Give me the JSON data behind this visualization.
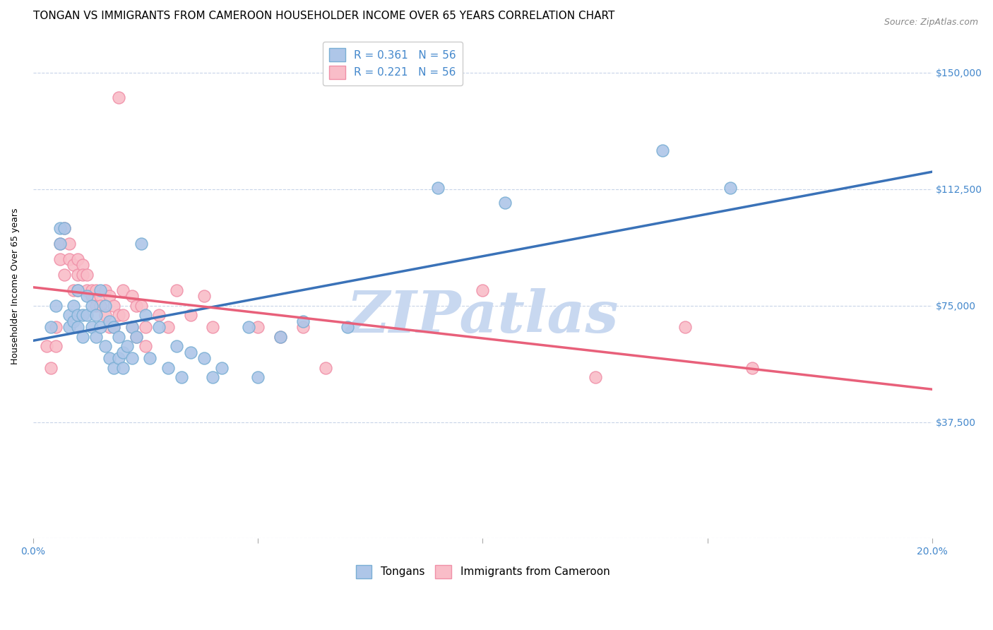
{
  "title": "TONGAN VS IMMIGRANTS FROM CAMEROON HOUSEHOLDER INCOME OVER 65 YEARS CORRELATION CHART",
  "source": "Source: ZipAtlas.com",
  "ylabel": "Householder Income Over 65 years",
  "xlim": [
    0.0,
    0.2
  ],
  "ylim": [
    0,
    162500
  ],
  "yticks": [
    0,
    37500,
    75000,
    112500,
    150000
  ],
  "ytick_labels": [
    "",
    "$37,500",
    "$75,000",
    "$112,500",
    "$150,000"
  ],
  "xticks": [
    0.0,
    0.05,
    0.1,
    0.15,
    0.2
  ],
  "xtick_labels": [
    "0.0%",
    "",
    "",
    "",
    "20.0%"
  ],
  "series1_label": "Tongans",
  "series2_label": "Immigrants from Cameroon",
  "blue_scatter_color": "#aec6e8",
  "blue_edge_color": "#7aafd4",
  "pink_scatter_color": "#f9bdc8",
  "pink_edge_color": "#f090a8",
  "line_blue": "#3a72b8",
  "line_pink": "#e8607a",
  "blue_scatter": [
    [
      0.004,
      68000
    ],
    [
      0.005,
      75000
    ],
    [
      0.006,
      100000
    ],
    [
      0.006,
      95000
    ],
    [
      0.007,
      100000
    ],
    [
      0.008,
      72000
    ],
    [
      0.008,
      68000
    ],
    [
      0.009,
      75000
    ],
    [
      0.009,
      70000
    ],
    [
      0.01,
      80000
    ],
    [
      0.01,
      72000
    ],
    [
      0.01,
      68000
    ],
    [
      0.011,
      72000
    ],
    [
      0.011,
      65000
    ],
    [
      0.012,
      78000
    ],
    [
      0.012,
      72000
    ],
    [
      0.013,
      75000
    ],
    [
      0.013,
      68000
    ],
    [
      0.014,
      72000
    ],
    [
      0.014,
      65000
    ],
    [
      0.015,
      80000
    ],
    [
      0.015,
      68000
    ],
    [
      0.016,
      75000
    ],
    [
      0.016,
      62000
    ],
    [
      0.017,
      70000
    ],
    [
      0.017,
      58000
    ],
    [
      0.018,
      68000
    ],
    [
      0.018,
      55000
    ],
    [
      0.019,
      65000
    ],
    [
      0.019,
      58000
    ],
    [
      0.02,
      60000
    ],
    [
      0.02,
      55000
    ],
    [
      0.021,
      62000
    ],
    [
      0.022,
      68000
    ],
    [
      0.022,
      58000
    ],
    [
      0.023,
      65000
    ],
    [
      0.024,
      95000
    ],
    [
      0.025,
      72000
    ],
    [
      0.026,
      58000
    ],
    [
      0.028,
      68000
    ],
    [
      0.03,
      55000
    ],
    [
      0.032,
      62000
    ],
    [
      0.033,
      52000
    ],
    [
      0.035,
      60000
    ],
    [
      0.038,
      58000
    ],
    [
      0.04,
      52000
    ],
    [
      0.042,
      55000
    ],
    [
      0.048,
      68000
    ],
    [
      0.05,
      52000
    ],
    [
      0.055,
      65000
    ],
    [
      0.06,
      70000
    ],
    [
      0.07,
      68000
    ],
    [
      0.09,
      113000
    ],
    [
      0.105,
      108000
    ],
    [
      0.14,
      125000
    ],
    [
      0.155,
      113000
    ]
  ],
  "pink_scatter": [
    [
      0.003,
      62000
    ],
    [
      0.004,
      55000
    ],
    [
      0.005,
      68000
    ],
    [
      0.005,
      62000
    ],
    [
      0.006,
      95000
    ],
    [
      0.006,
      90000
    ],
    [
      0.007,
      100000
    ],
    [
      0.007,
      85000
    ],
    [
      0.008,
      95000
    ],
    [
      0.008,
      90000
    ],
    [
      0.009,
      88000
    ],
    [
      0.009,
      80000
    ],
    [
      0.01,
      90000
    ],
    [
      0.01,
      85000
    ],
    [
      0.01,
      80000
    ],
    [
      0.011,
      88000
    ],
    [
      0.011,
      85000
    ],
    [
      0.012,
      85000
    ],
    [
      0.012,
      80000
    ],
    [
      0.013,
      80000
    ],
    [
      0.013,
      78000
    ],
    [
      0.014,
      80000
    ],
    [
      0.014,
      75000
    ],
    [
      0.015,
      78000
    ],
    [
      0.015,
      75000
    ],
    [
      0.016,
      80000
    ],
    [
      0.016,
      72000
    ],
    [
      0.017,
      78000
    ],
    [
      0.017,
      68000
    ],
    [
      0.018,
      75000
    ],
    [
      0.018,
      68000
    ],
    [
      0.019,
      142000
    ],
    [
      0.019,
      72000
    ],
    [
      0.02,
      80000
    ],
    [
      0.02,
      72000
    ],
    [
      0.022,
      78000
    ],
    [
      0.022,
      68000
    ],
    [
      0.023,
      75000
    ],
    [
      0.023,
      65000
    ],
    [
      0.024,
      75000
    ],
    [
      0.025,
      68000
    ],
    [
      0.025,
      62000
    ],
    [
      0.028,
      72000
    ],
    [
      0.03,
      68000
    ],
    [
      0.032,
      80000
    ],
    [
      0.035,
      72000
    ],
    [
      0.038,
      78000
    ],
    [
      0.04,
      68000
    ],
    [
      0.05,
      68000
    ],
    [
      0.055,
      65000
    ],
    [
      0.06,
      68000
    ],
    [
      0.065,
      55000
    ],
    [
      0.1,
      80000
    ],
    [
      0.125,
      52000
    ],
    [
      0.145,
      68000
    ],
    [
      0.16,
      55000
    ]
  ],
  "watermark": "ZIPatlas",
  "watermark_color": "#c8d8f0",
  "background_color": "#ffffff",
  "grid_color": "#c8d4e8",
  "title_fontsize": 11,
  "axis_label_fontsize": 9,
  "tick_label_fontsize": 10,
  "tick_label_color": "#4488cc",
  "legend_fontsize": 11,
  "source_color": "#888888"
}
